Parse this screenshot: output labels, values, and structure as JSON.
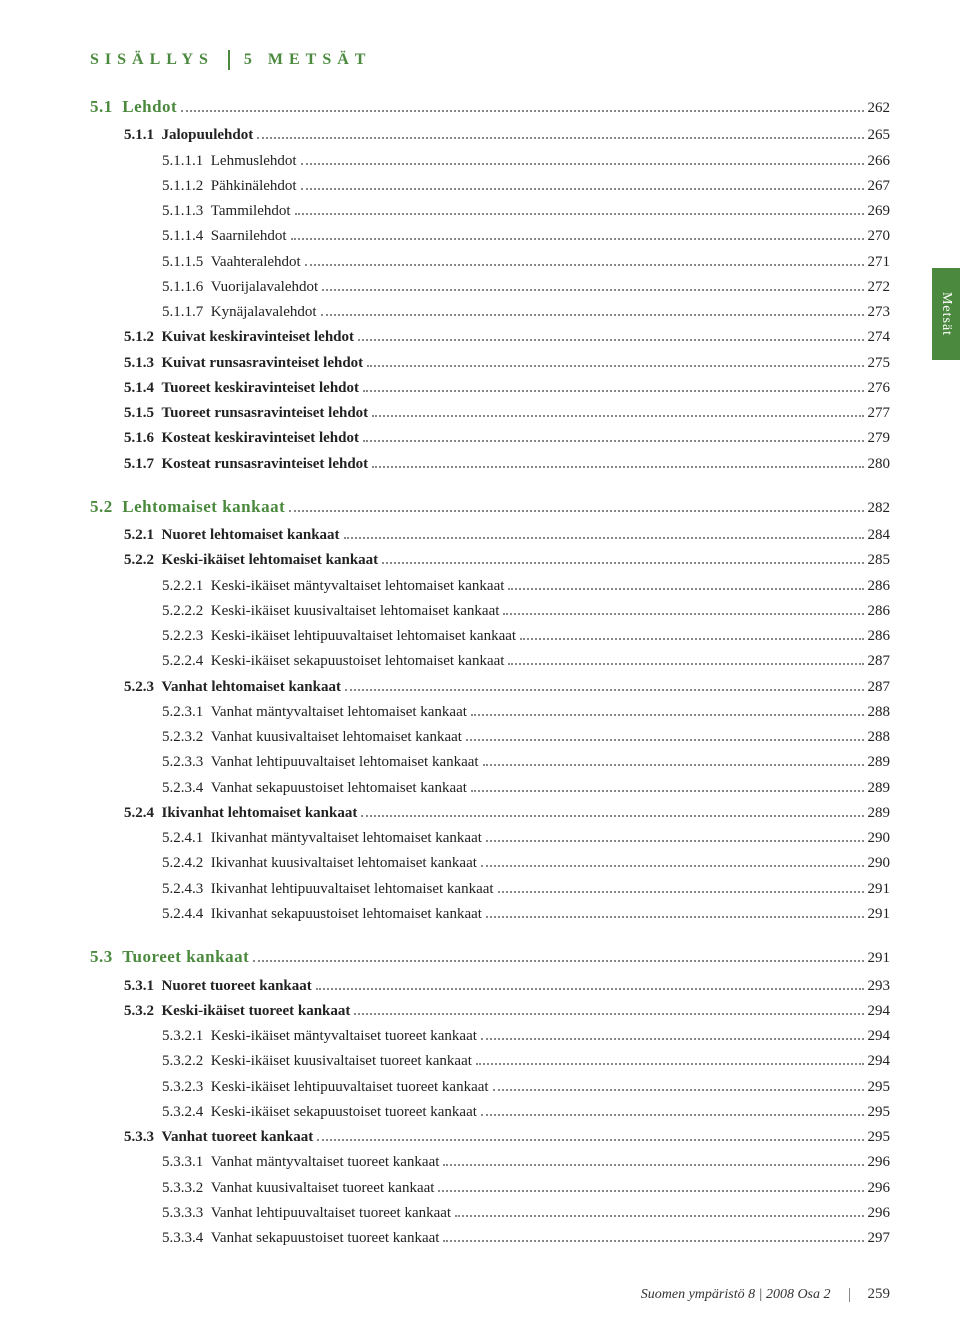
{
  "header": {
    "contents_label": "SISÄLLYS",
    "section_label": "5 METSÄT"
  },
  "side_tab": "Metsät",
  "footer": {
    "publication": "Suomen ympäristö  8 | 2008  Osa 2",
    "page": "259"
  },
  "toc": [
    {
      "level": "lvl1",
      "indent": "",
      "num": "5.1",
      "label": "Lehdot",
      "page": "262"
    },
    {
      "level": "lvl2",
      "indent": "ind1",
      "num": "5.1.1",
      "label": "Jalopuulehdot",
      "page": "265"
    },
    {
      "level": "",
      "indent": "ind2",
      "num": "5.1.1.1",
      "label": "Lehmuslehdot",
      "page": "266"
    },
    {
      "level": "",
      "indent": "ind2",
      "num": "5.1.1.2",
      "label": "Pähkinälehdot",
      "page": "267"
    },
    {
      "level": "",
      "indent": "ind2",
      "num": "5.1.1.3",
      "label": "Tammilehdot",
      "page": "269"
    },
    {
      "level": "",
      "indent": "ind2",
      "num": "5.1.1.4",
      "label": "Saarnilehdot",
      "page": "270"
    },
    {
      "level": "",
      "indent": "ind2",
      "num": "5.1.1.5",
      "label": "Vaahteralehdot",
      "page": "271"
    },
    {
      "level": "",
      "indent": "ind2",
      "num": "5.1.1.6",
      "label": "Vuorijalavalehdot",
      "page": "272"
    },
    {
      "level": "",
      "indent": "ind2",
      "num": "5.1.1.7",
      "label": "Kynäjalavalehdot",
      "page": "273"
    },
    {
      "level": "lvl2",
      "indent": "ind1",
      "num": "5.1.2",
      "label": "Kuivat keskiravinteiset lehdot",
      "page": "274"
    },
    {
      "level": "lvl2",
      "indent": "ind1",
      "num": "5.1.3",
      "label": "Kuivat runsasravinteiset lehdot",
      "page": "275"
    },
    {
      "level": "lvl2",
      "indent": "ind1",
      "num": "5.1.4",
      "label": "Tuoreet keskiravinteiset lehdot",
      "page": "276"
    },
    {
      "level": "lvl2",
      "indent": "ind1",
      "num": "5.1.5",
      "label": "Tuoreet runsasravinteiset lehdot",
      "page": "277"
    },
    {
      "level": "lvl2",
      "indent": "ind1",
      "num": "5.1.6",
      "label": "Kosteat keskiravinteiset lehdot",
      "page": "279"
    },
    {
      "level": "lvl2",
      "indent": "ind1",
      "num": "5.1.7",
      "label": "Kosteat runsasravinteiset lehdot",
      "page": "280"
    },
    {
      "level": "lvl1",
      "indent": "",
      "num": "5.2",
      "label": "Lehtomaiset kankaat",
      "page": "282"
    },
    {
      "level": "lvl2",
      "indent": "ind1",
      "num": "5.2.1",
      "label": "Nuoret lehtomaiset kankaat",
      "page": "284"
    },
    {
      "level": "lvl2",
      "indent": "ind1",
      "num": "5.2.2",
      "label": "Keski-ikäiset lehtomaiset kankaat",
      "page": "285"
    },
    {
      "level": "",
      "indent": "ind2",
      "num": "5.2.2.1",
      "label": "Keski-ikäiset mäntyvaltaiset lehtomaiset kankaat",
      "page": "286"
    },
    {
      "level": "",
      "indent": "ind2",
      "num": "5.2.2.2",
      "label": "Keski-ikäiset kuusivaltaiset lehtomaiset kankaat",
      "page": "286"
    },
    {
      "level": "",
      "indent": "ind2",
      "num": "5.2.2.3",
      "label": "Keski-ikäiset lehtipuuvaltaiset lehtomaiset kankaat",
      "page": "286"
    },
    {
      "level": "",
      "indent": "ind2",
      "num": "5.2.2.4",
      "label": "Keski-ikäiset sekapuustoiset lehtomaiset kankaat",
      "page": "287"
    },
    {
      "level": "lvl2",
      "indent": "ind1",
      "num": "5.2.3",
      "label": "Vanhat lehtomaiset kankaat",
      "page": "287"
    },
    {
      "level": "",
      "indent": "ind2",
      "num": "5.2.3.1",
      "label": "Vanhat mäntyvaltaiset lehtomaiset kankaat",
      "page": "288"
    },
    {
      "level": "",
      "indent": "ind2",
      "num": "5.2.3.2",
      "label": "Vanhat kuusivaltaiset lehtomaiset kankaat",
      "page": "288"
    },
    {
      "level": "",
      "indent": "ind2",
      "num": "5.2.3.3",
      "label": "Vanhat lehtipuuvaltaiset lehtomaiset kankaat",
      "page": "289"
    },
    {
      "level": "",
      "indent": "ind2",
      "num": "5.2.3.4",
      "label": "Vanhat sekapuustoiset lehtomaiset kankaat",
      "page": "289"
    },
    {
      "level": "lvl2",
      "indent": "ind1",
      "num": "5.2.4",
      "label": "Ikivanhat lehtomaiset kankaat",
      "page": "289"
    },
    {
      "level": "",
      "indent": "ind2",
      "num": "5.2.4.1",
      "label": "Ikivanhat mäntyvaltaiset lehtomaiset kankaat",
      "page": "290"
    },
    {
      "level": "",
      "indent": "ind2",
      "num": "5.2.4.2",
      "label": "Ikivanhat kuusivaltaiset lehtomaiset kankaat",
      "page": "290"
    },
    {
      "level": "",
      "indent": "ind2",
      "num": "5.2.4.3",
      "label": "Ikivanhat lehtipuuvaltaiset lehtomaiset kankaat",
      "page": "291"
    },
    {
      "level": "",
      "indent": "ind2",
      "num": "5.2.4.4",
      "label": "Ikivanhat sekapuustoiset lehtomaiset kankaat",
      "page": "291"
    },
    {
      "level": "lvl1",
      "indent": "",
      "num": "5.3",
      "label": "Tuoreet kankaat",
      "page": "291"
    },
    {
      "level": "lvl2",
      "indent": "ind1",
      "num": "5.3.1",
      "label": "Nuoret tuoreet kankaat",
      "page": "293"
    },
    {
      "level": "lvl2",
      "indent": "ind1",
      "num": "5.3.2",
      "label": "Keski-ikäiset tuoreet kankaat",
      "page": "294"
    },
    {
      "level": "",
      "indent": "ind2",
      "num": "5.3.2.1",
      "label": "Keski-ikäiset mäntyvaltaiset tuoreet kankaat",
      "page": "294"
    },
    {
      "level": "",
      "indent": "ind2",
      "num": "5.3.2.2",
      "label": "Keski-ikäiset kuusivaltaiset tuoreet kankaat",
      "page": "294"
    },
    {
      "level": "",
      "indent": "ind2",
      "num": "5.3.2.3",
      "label": "Keski-ikäiset lehtipuuvaltaiset tuoreet kankaat",
      "page": "295"
    },
    {
      "level": "",
      "indent": "ind2",
      "num": "5.3.2.4",
      "label": "Keski-ikäiset sekapuustoiset tuoreet kankaat",
      "page": "295"
    },
    {
      "level": "lvl2",
      "indent": "ind1",
      "num": "5.3.3",
      "label": "Vanhat tuoreet kankaat",
      "page": "295"
    },
    {
      "level": "",
      "indent": "ind2",
      "num": "5.3.3.1",
      "label": "Vanhat mäntyvaltaiset tuoreet kankaat",
      "page": "296"
    },
    {
      "level": "",
      "indent": "ind2",
      "num": "5.3.3.2",
      "label": "Vanhat kuusivaltaiset tuoreet kankaat",
      "page": "296"
    },
    {
      "level": "",
      "indent": "ind2",
      "num": "5.3.3.3",
      "label": "Vanhat lehtipuuvaltaiset tuoreet kankaat",
      "page": "296"
    },
    {
      "level": "",
      "indent": "ind2",
      "num": "5.3.3.4",
      "label": "Vanhat sekapuustoiset tuoreet kankaat",
      "page": "297"
    }
  ]
}
